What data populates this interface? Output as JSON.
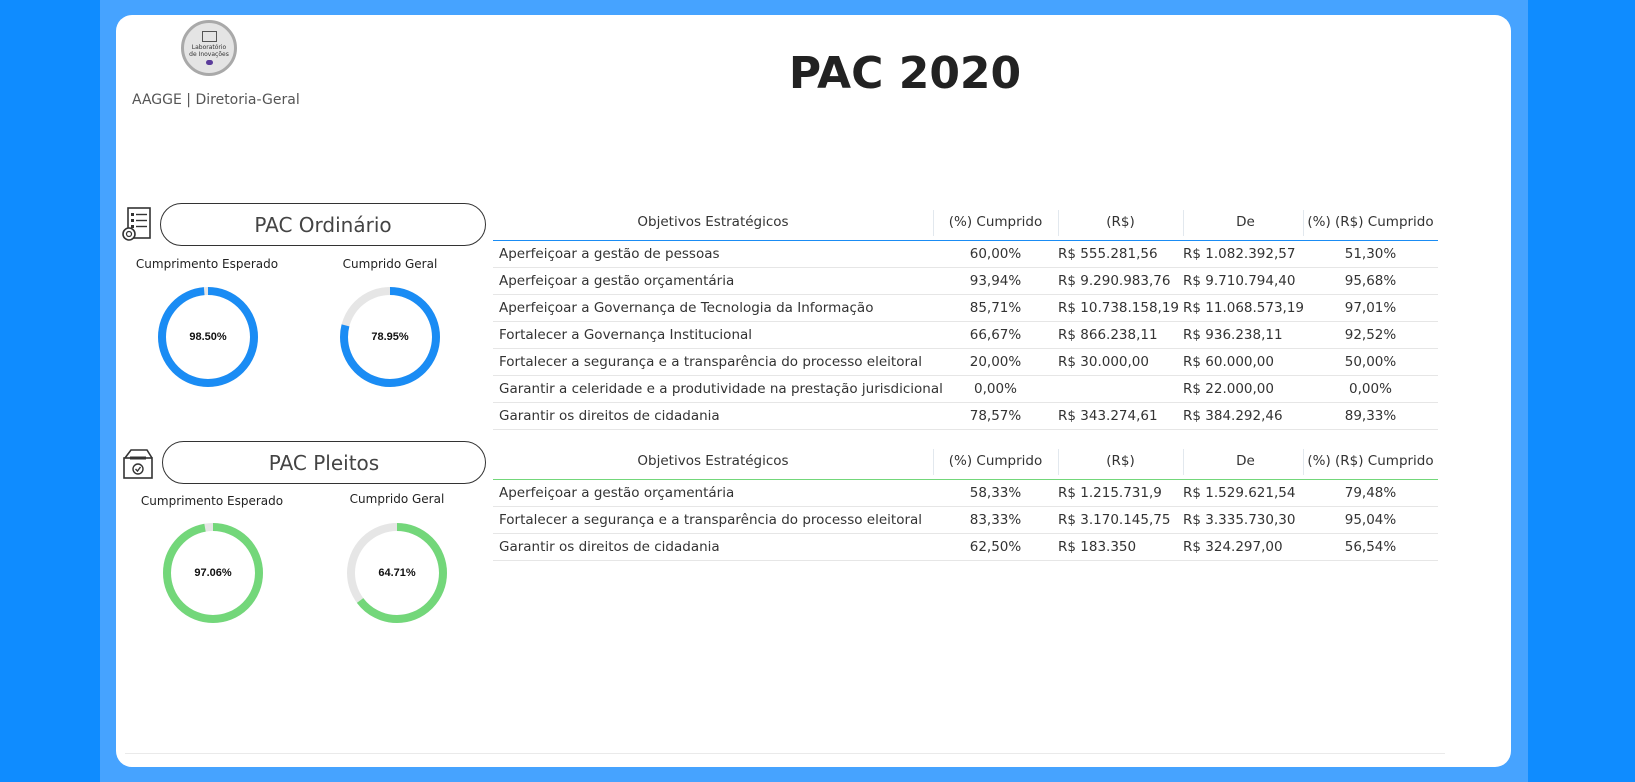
{
  "header": {
    "logo_text": [
      "Laboratório",
      "de Inovações"
    ],
    "org": "AAGGE | Diretoria-Geral",
    "title": "PAC 2020"
  },
  "colors": {
    "background": "#0f8cff",
    "band": "#46a3ff",
    "ordinario_accent": "#1a8cf4",
    "pleitos_accent": "#73d77a",
    "gauge_track": "#e6e6e6"
  },
  "sections": [
    {
      "title": "PAC Ordinário",
      "icon": "checklist-document-icon",
      "gauges": [
        {
          "label": "Cumprimento Esperado",
          "value": 98.5,
          "display": "98.50%"
        },
        {
          "label": "Cumprido Geral",
          "value": 78.95,
          "display": "78.95%"
        }
      ],
      "table": {
        "columns": [
          "Objetivos Estratégicos",
          "(%) Cumprido",
          "(R$)",
          "De",
          "(%) (R$) Cumprido"
        ],
        "rows": [
          [
            "Aperfeiçoar a gestão de pessoas",
            "60,00%",
            "R$ 555.281,56",
            "R$ 1.082.392,57",
            "51,30%"
          ],
          [
            "Aperfeiçoar a gestão orçamentária",
            "93,94%",
            "R$ 9.290.983,76",
            "R$ 9.710.794,40",
            "95,68%"
          ],
          [
            "Aperfeiçoar a Governança de Tecnologia da Informação",
            "85,71%",
            "R$ 10.738.158,19",
            "R$ 11.068.573,19",
            "97,01%"
          ],
          [
            "Fortalecer a Governança Institucional",
            "66,67%",
            "R$ 866.238,11",
            "R$ 936.238,11",
            "92,52%"
          ],
          [
            "Fortalecer a segurança e a transparência do processo eleitoral",
            "20,00%",
            "R$ 30.000,00",
            "R$ 60.000,00",
            "50,00%"
          ],
          [
            "Garantir a celeridade e a produtividade na prestação jurisdicional",
            "0,00%",
            "",
            "R$ 22.000,00",
            "0,00%"
          ],
          [
            "Garantir os direitos de cidadania",
            "78,57%",
            "R$ 343.274,61",
            "R$ 384.292,46",
            "89,33%"
          ]
        ]
      }
    },
    {
      "title": "PAC Pleitos",
      "icon": "ballot-box-icon",
      "gauges": [
        {
          "label": "Cumprimento Esperado",
          "value": 97.06,
          "display": "97.06%"
        },
        {
          "label": "Cumprido Geral",
          "value": 64.71,
          "display": "64.71%"
        }
      ],
      "table": {
        "columns": [
          "Objetivos Estratégicos",
          "(%) Cumprido",
          "(R$)",
          "De",
          "(%) (R$) Cumprido"
        ],
        "rows": [
          [
            "Aperfeiçoar a gestão orçamentária",
            "58,33%",
            "R$ 1.215.731,9",
            "R$ 1.529.621,54",
            "79,48%"
          ],
          [
            "Fortalecer a segurança e a transparência do processo eleitoral",
            "83,33%",
            "R$ 3.170.145,75",
            "R$ 3.335.730,30",
            "95,04%"
          ],
          [
            "Garantir os direitos de cidadania",
            "62,50%",
            "R$ 183.350",
            "R$ 324.297,00",
            "56,54%"
          ]
        ]
      }
    }
  ]
}
